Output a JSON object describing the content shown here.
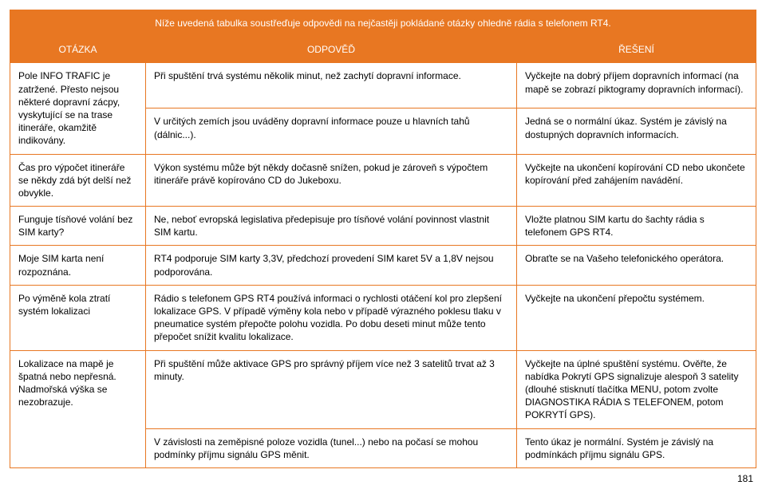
{
  "title": "Níže uvedená tabulka soustřeďuje odpovědi na nejčastěji pokládané otázky ohledně rádia s telefonem RT4.",
  "headers": {
    "question": "OTÁZKA",
    "answer": "ODPOVĚĎ",
    "solution": "ŘEŠENÍ"
  },
  "pageNumber": "181",
  "rows": [
    {
      "question": "Pole INFO TRAFIC je zatržené. Přesto nejsou některé dopravní zácpy, vyskytující se na trase itineráře, okamžitě indikovány.",
      "answer": "Při spuštění trvá systému několik minut, než zachytí dopravní informace.",
      "solution": "Vyčkejte na dobrý příjem dopravních informací (na mapě se zobrazí piktogramy dopravních informací).",
      "answer2": "V určitých zemích jsou uváděny dopravní informace pouze u hlavních tahů (dálnic...).",
      "solution2": "Jedná se o normální úkaz. Systém je závislý na dostupných dopravních informacích."
    },
    {
      "question": "Čas pro výpočet itineráře se někdy zdá být delší než obvykle.",
      "answer": "Výkon systému může být někdy dočasně snížen, pokud je zároveň s výpočtem itineráře právě kopírováno CD do Jukeboxu.",
      "solution": "Vyčkejte na ukončení kopírování CD nebo ukončete kopírování před zahájením navádění."
    },
    {
      "question": "Funguje tísňové volání bez SIM karty?",
      "answer": "Ne, neboť evropská legislativa předepisuje pro tísňové volání povinnost vlastnit SIM kartu.",
      "solution": "Vložte platnou SIM kartu do šachty rádia s telefonem GPS RT4."
    },
    {
      "question": "Moje SIM karta není rozpoznána.",
      "answer": "RT4 podporuje SIM karty 3,3V, předchozí provedení SIM karet 5V a 1,8V nejsou podporována.",
      "solution": "Obraťte se na Vašeho telefonického operátora."
    },
    {
      "question": "Po výměně kola ztratí systém lokalizaci",
      "answer": "Rádio s telefonem GPS RT4 používá informaci o rychlosti otáčení kol pro zlepšení lokalizace GPS. V případě výměny kola nebo v případě výrazného poklesu tlaku v pneumatice systém přepočte polohu vozidla. Po dobu deseti minut může tento přepočet snížit kvalitu lokalizace.",
      "solution": "Vyčkejte na ukončení přepočtu systémem."
    },
    {
      "question": "Lokalizace na mapě je špatná nebo nepřesná. Nadmořská výška se nezobrazuje.",
      "answer": "Při spuštění může aktivace GPS pro správný příjem více než 3 satelitů trvat až 3 minuty.",
      "solution": "Vyčkejte na úplné spuštění systému. Ověřte, že nabídka Pokrytí GPS signalizuje alespoň 3 satelity (dlouhé stisknutí tlačítka MENU, potom zvolte DIAGNOSTIKA RÁDIA S TELEFONEM, potom POKRYTÍ GPS).",
      "answer2": "V závislosti na zeměpisné poloze vozidla (tunel...) nebo na počasí se mohou podmínky příjmu signálu GPS měnit.",
      "solution2": "Tento úkaz je normální. Systém je závislý na podmínkách příjmu signálu GPS."
    }
  ],
  "styling": {
    "header_bg": "#e87722",
    "header_text": "#ffffff",
    "border_color": "#e87722",
    "font_size": 12
  }
}
